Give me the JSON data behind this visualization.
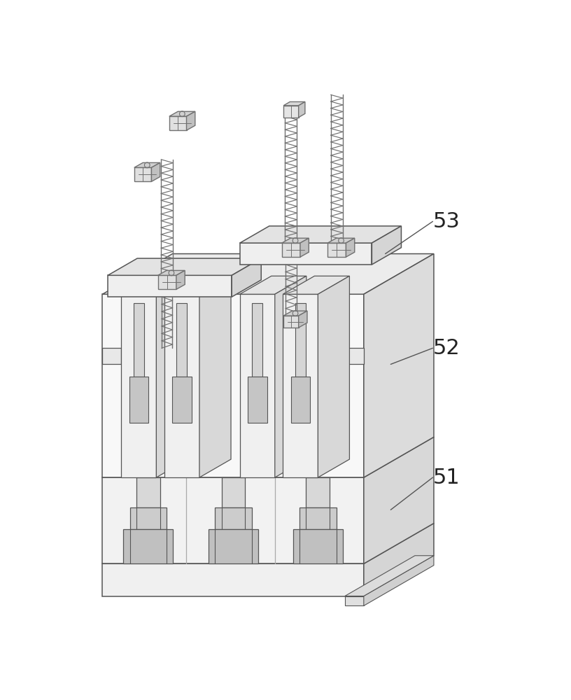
{
  "background": "#ffffff",
  "lc": "#555555",
  "lw": 1.1,
  "fc_front": "#f5f5f5",
  "fc_top": "#e8e8e8",
  "fc_right": "#d8d8d8",
  "fc_slot": "#d0d0d0",
  "fc_slot_inner": "#c0c0c0",
  "bolt_color": "#707070",
  "nut_front": "#e0e0e0",
  "nut_top": "#d0d0d0",
  "nut_right": "#c0c0c0",
  "label_fs": 22,
  "label_color": "#222222",
  "leader_lw": 1.0,
  "leader_color": "#555555"
}
